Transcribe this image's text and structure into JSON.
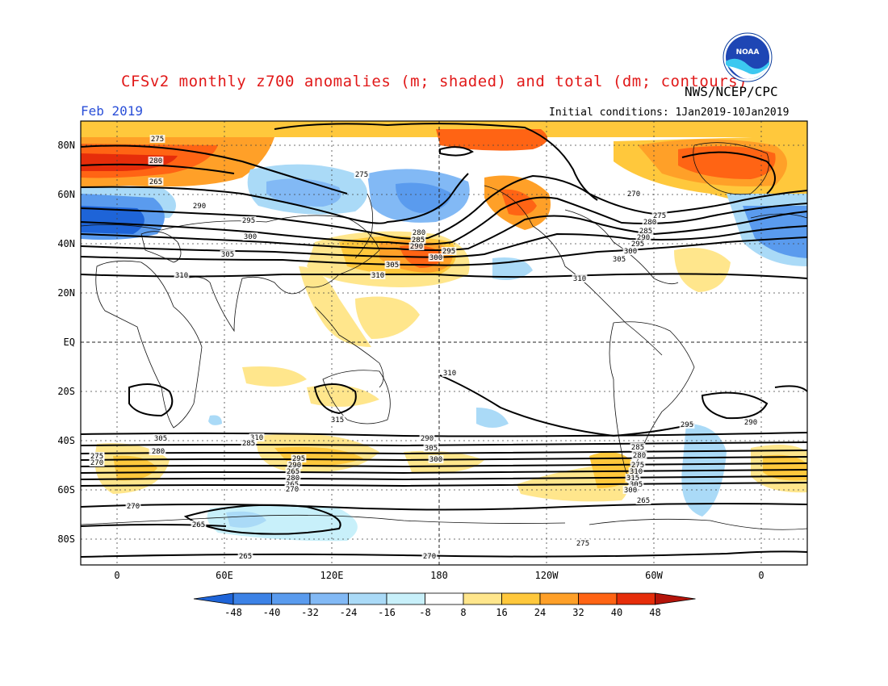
{
  "header": {
    "title": "CFSv2 monthly z700 anomalies (m; shaded) and total (dm; contours)",
    "credit": "NWS/NCEP/CPC",
    "logo_text": "NOAA",
    "month": "Feb 2019",
    "initial_conditions": "Initial conditions: 1Jan2019-10Jan2019"
  },
  "map": {
    "lat_labels": [
      "80N",
      "60N",
      "40N",
      "20N",
      "EQ",
      "20S",
      "40S",
      "60S",
      "80S"
    ],
    "lon_labels": [
      "0",
      "60E",
      "120E",
      "180",
      "120W",
      "60W",
      "0"
    ],
    "contour_labels": [
      "275",
      "280",
      "265",
      "290",
      "295",
      "300",
      "305",
      "310",
      "275",
      "280",
      "285",
      "290",
      "300",
      "295",
      "305",
      "310",
      "270",
      "275",
      "280",
      "285",
      "290",
      "295",
      "300",
      "305",
      "310",
      "310",
      "315",
      "310",
      "305",
      "300",
      "295",
      "290",
      "265",
      "280",
      "305",
      "300",
      "295",
      "290",
      "285",
      "280",
      "275",
      "310",
      "315",
      "305",
      "300",
      "295",
      "290",
      "285",
      "280",
      "275",
      "270",
      "265",
      "270",
      "265",
      "270",
      "265",
      "265",
      "270",
      "275"
    ]
  },
  "colorbar": {
    "tick_labels": [
      "-48",
      "-40",
      "-32",
      "-24",
      "-16",
      "-8",
      "8",
      "16",
      "24",
      "32",
      "40",
      "48"
    ],
    "colors": [
      "#1e64d8",
      "#3c82e6",
      "#5a9bee",
      "#82b9f5",
      "#aadaf7",
      "#c8f0fa",
      "#ffffff",
      "#ffe68c",
      "#ffc83c",
      "#ffa028",
      "#ff6414",
      "#e62d0a",
      "#b4140a"
    ]
  },
  "colors": {
    "title": "#e11919",
    "month": "#2a4fd8"
  }
}
